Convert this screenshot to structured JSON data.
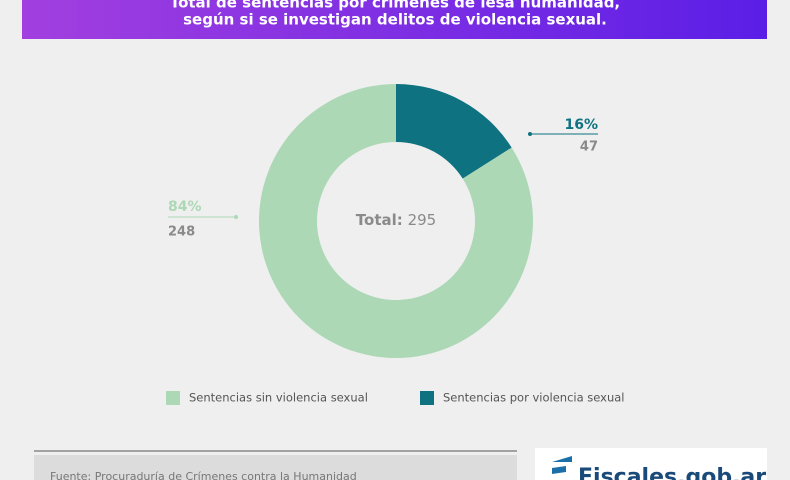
{
  "header": {
    "title_lines": [
      "Total de sentencias por crímenes de lesa humanidad,",
      "según si se investigan delitos de violencia sexual."
    ]
  },
  "chart_data": {
    "type": "donut",
    "categories": [
      "Sentencias por violencia sexual",
      "Sentencias sin violencia sexual"
    ],
    "values": [
      16,
      84
    ],
    "value_labels": [
      "16%",
      "84%"
    ],
    "counts": [
      47,
      248
    ],
    "colors": [
      "#0e7280",
      "#acd8b5"
    ],
    "center_label": "Total:",
    "center_value": 295
  },
  "footer": {
    "source": "Fuente: Procuraduría de Crímenes contra la Humanidad",
    "logo": "Fiscales.gob.ar"
  }
}
